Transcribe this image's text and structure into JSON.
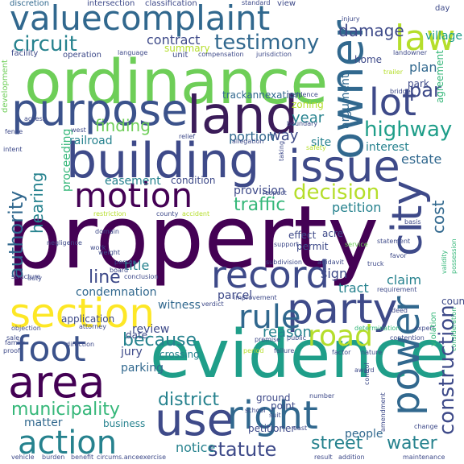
{
  "palette": {
    "dark_purple": "#440154",
    "indigo": "#3e4a89",
    "blue": "#31688e",
    "teal": "#26828e",
    "green": "#35b779",
    "lime": "#6ece58",
    "yellow_green": "#b5de2b",
    "yellow": "#fde725",
    "background": "#ffffff"
  },
  "words": [
    {
      "text": "property",
      "color": "#440154"
    },
    {
      "text": "evidence",
      "color": "#1f9e89"
    },
    {
      "text": "ordinance",
      "color": "#6ece58"
    },
    {
      "text": "building",
      "color": "#3e4a89"
    },
    {
      "text": "land",
      "color": "#3b1c59"
    },
    {
      "text": "purpose",
      "color": "#3b528b"
    },
    {
      "text": "valuecomplaint",
      "color": "#31688e"
    },
    {
      "text": "owner",
      "color": "#31688e"
    },
    {
      "text": "issue",
      "color": "#3e4a89"
    },
    {
      "text": "party",
      "color": "#3e4a89"
    },
    {
      "text": "section",
      "color": "#fde725"
    },
    {
      "text": "area",
      "color": "#440154"
    },
    {
      "text": "motion",
      "color": "#440154"
    },
    {
      "text": "use",
      "color": "#3e4a89"
    },
    {
      "text": "right",
      "color": "#31688e"
    },
    {
      "text": "foot",
      "color": "#3b528b"
    },
    {
      "text": "record",
      "color": "#3e4a89"
    },
    {
      "text": "city",
      "color": "#3e4a89"
    },
    {
      "text": "power",
      "color": "#31688e"
    },
    {
      "text": "lot",
      "color": "#3e4a89"
    },
    {
      "text": "rule",
      "color": "#31688e"
    },
    {
      "text": "law",
      "color": "#b5de2b"
    },
    {
      "text": "road",
      "color": "#b5de2b"
    },
    {
      "text": "action",
      "color": "#26828e"
    },
    {
      "text": "construction",
      "color": "#3e4a89"
    },
    {
      "text": "highway",
      "color": "#1f9e89"
    },
    {
      "text": "testimony",
      "color": "#31688e"
    },
    {
      "text": "circuit",
      "color": "#26828e"
    },
    {
      "text": "authority",
      "color": "#31688e"
    },
    {
      "text": "decision",
      "color": "#b5de2b"
    },
    {
      "text": "because",
      "color": "#26828e"
    },
    {
      "text": "statute",
      "color": "#3e4a89"
    },
    {
      "text": "street",
      "color": "#26828e"
    },
    {
      "text": "district",
      "color": "#26828e"
    },
    {
      "text": "municipality",
      "color": "#35b779"
    },
    {
      "text": "traffic",
      "color": "#35b779"
    },
    {
      "text": "finding",
      "color": "#6ece58"
    },
    {
      "text": "line",
      "color": "#3e4a89"
    },
    {
      "text": "damage",
      "color": "#3e4a89"
    },
    {
      "text": "hearing",
      "color": "#26828e"
    },
    {
      "text": "par",
      "color": "#3e4a89"
    },
    {
      "text": "cost",
      "color": "#31688e"
    },
    {
      "text": "water",
      "color": "#26828e"
    },
    {
      "text": "village",
      "color": "#1f9e89"
    },
    {
      "text": "contract",
      "color": "#3e4a89"
    },
    {
      "text": "condemnation",
      "color": "#31688e"
    },
    {
      "text": "witness",
      "color": "#31688e"
    },
    {
      "text": "petition",
      "color": "#26828e"
    },
    {
      "text": "reason",
      "color": "#26828e"
    },
    {
      "text": "claim",
      "color": "#26828e"
    },
    {
      "text": "tract",
      "color": "#26828e"
    },
    {
      "text": "interest",
      "color": "#26828e"
    },
    {
      "text": "estate",
      "color": "#31688e"
    },
    {
      "text": "argument",
      "color": "#31688e"
    },
    {
      "text": "way",
      "color": "#3e4a89"
    },
    {
      "text": "year",
      "color": "#26828e"
    },
    {
      "text": "site",
      "color": "#26828e"
    },
    {
      "text": "plan",
      "color": "#31688e"
    },
    {
      "text": "sign",
      "color": "#3e4a89"
    },
    {
      "text": "notice",
      "color": "#26828e"
    },
    {
      "text": "title",
      "color": "#26828e"
    },
    {
      "text": "portion",
      "color": "#31688e"
    },
    {
      "text": "matter",
      "color": "#31688e"
    },
    {
      "text": "proceeding",
      "color": "#35b779"
    },
    {
      "text": "review",
      "color": "#3e4a89"
    },
    {
      "text": "jury",
      "color": "#3e4a89"
    },
    {
      "text": "parking",
      "color": "#31688e"
    },
    {
      "text": "parcel",
      "color": "#3e4a89"
    },
    {
      "text": "people",
      "color": "#31688e"
    },
    {
      "text": "easement",
      "color": "#26828e"
    },
    {
      "text": "railroad",
      "color": "#26828e"
    },
    {
      "text": "application",
      "color": "#3e4a89"
    },
    {
      "text": "ground",
      "color": "#3e4a89"
    },
    {
      "text": "point",
      "color": "#3e4a89"
    },
    {
      "text": "provision",
      "color": "#3e4a89"
    },
    {
      "text": "condition",
      "color": "#3e4a89"
    },
    {
      "text": "date",
      "color": "#3e4a89"
    },
    {
      "text": "summary",
      "color": "#b5de2b"
    },
    {
      "text": "trackannexation",
      "color": "#31688e"
    },
    {
      "text": "zoning",
      "color": "#b5de2b"
    },
    {
      "text": "count",
      "color": "#3e4a89"
    },
    {
      "text": "business",
      "color": "#26828e"
    },
    {
      "text": "crossing",
      "color": "#26828e"
    },
    {
      "text": "petitioner",
      "color": "#3e4a89"
    },
    {
      "text": "effect",
      "color": "#3e4a89"
    },
    {
      "text": "permit",
      "color": "#3e4a89"
    },
    {
      "text": "acre",
      "color": "#3e4a89"
    },
    {
      "text": "home",
      "color": "#3e4a89"
    },
    {
      "text": "park",
      "color": "#3e4a89"
    },
    {
      "text": "agreement",
      "color": "#35b779"
    },
    {
      "text": "day",
      "color": "#3e4a89"
    },
    {
      "text": "view",
      "color": "#3e4a89"
    },
    {
      "text": "discretion",
      "color": "#31688e"
    },
    {
      "text": "intersection",
      "color": "#3e4a89"
    },
    {
      "text": "classification",
      "color": "#3e4a89"
    },
    {
      "text": "standard",
      "color": "#3e4a89"
    },
    {
      "text": "development",
      "color": "#6ece58"
    },
    {
      "text": "facility",
      "color": "#3e4a89"
    },
    {
      "text": "operation",
      "color": "#3e4a89"
    },
    {
      "text": "unit",
      "color": "#3e4a89"
    },
    {
      "text": "compensation",
      "color": "#3e4a89"
    },
    {
      "text": "jurisdiction",
      "color": "#3e4a89"
    },
    {
      "text": "language",
      "color": "#3e4a89"
    },
    {
      "text": "work",
      "color": "#3e4a89"
    },
    {
      "text": "weight",
      "color": "#3e4a89"
    },
    {
      "text": "west",
      "color": "#3e4a89"
    },
    {
      "text": "relief",
      "color": "#3e4a89"
    },
    {
      "text": "access",
      "color": "#3e4a89"
    },
    {
      "text": "fence",
      "color": "#3e4a89"
    },
    {
      "text": "intent",
      "color": "#3e4a89"
    },
    {
      "text": "injury",
      "color": "#3e4a89"
    },
    {
      "text": "landowner",
      "color": "#3e4a89"
    },
    {
      "text": "trailer",
      "color": "#b5de2b"
    },
    {
      "text": "bridge",
      "color": "#3e4a89"
    },
    {
      "text": "residence",
      "color": "#3e4a89"
    },
    {
      "text": "boundary",
      "color": "#3e4a89"
    },
    {
      "text": "safety",
      "color": "#b5de2b"
    },
    {
      "text": "allegation",
      "color": "#3e4a89"
    },
    {
      "text": "taking",
      "color": "#3e4a89"
    },
    {
      "text": "respect",
      "color": "#3e4a89"
    },
    {
      "text": "domain",
      "color": "#3e4a89"
    },
    {
      "text": "negligence",
      "color": "#3e4a89"
    },
    {
      "text": "person",
      "color": "#3e4a89"
    },
    {
      "text": "county",
      "color": "#3e4a89"
    },
    {
      "text": "accident",
      "color": "#b5de2b"
    },
    {
      "text": "restriction",
      "color": "#b5de2b"
    },
    {
      "text": "support",
      "color": "#3e4a89"
    },
    {
      "text": "service",
      "color": "#6ece58"
    },
    {
      "text": "statement",
      "color": "#3e4a89"
    },
    {
      "text": "favor",
      "color": "#3e4a89"
    },
    {
      "text": "truck",
      "color": "#3e4a89"
    },
    {
      "text": "basis",
      "color": "#3e4a89"
    },
    {
      "text": "possession",
      "color": "#35b779"
    },
    {
      "text": "validity",
      "color": "#35b779"
    },
    {
      "text": "subdivision",
      "color": "#3e4a89"
    },
    {
      "text": "affidavit",
      "color": "#3e4a89"
    },
    {
      "text": "structure",
      "color": "#3e4a89"
    },
    {
      "text": "duty",
      "color": "#3e4a89"
    },
    {
      "text": "board",
      "color": "#3e4a89"
    },
    {
      "text": "conclusion",
      "color": "#3e4a89"
    },
    {
      "text": "improvement",
      "color": "#3e4a89"
    },
    {
      "text": "requirement",
      "color": "#3e4a89"
    },
    {
      "text": "verdict",
      "color": "#3e4a89"
    },
    {
      "text": "objection",
      "color": "#3e4a89"
    },
    {
      "text": "attorney",
      "color": "#3e4a89"
    },
    {
      "text": "premise",
      "color": "#3e4a89"
    },
    {
      "text": "determination",
      "color": "#35b779"
    },
    {
      "text": "deed",
      "color": "#3e4a89"
    },
    {
      "text": "expert",
      "color": "#3e4a89"
    },
    {
      "text": "violation",
      "color": "#35b779"
    },
    {
      "text": "consideration",
      "color": "#35b779"
    },
    {
      "text": "contention",
      "color": "#3e4a89"
    },
    {
      "text": "failure",
      "color": "#3e4a89"
    },
    {
      "text": "factor",
      "color": "#3e4a89"
    },
    {
      "text": "nature",
      "color": "#3e4a89"
    },
    {
      "text": "period",
      "color": "#b5de2b"
    },
    {
      "text": "public",
      "color": "#3e4a89"
    },
    {
      "text": "proof",
      "color": "#3e4a89"
    },
    {
      "text": "sale",
      "color": "#3e4a89"
    },
    {
      "text": "family",
      "color": "#3e4a89"
    },
    {
      "text": "direction",
      "color": "#3e4a89"
    },
    {
      "text": "award",
      "color": "#3e4a89"
    },
    {
      "text": "number",
      "color": "#3e4a89"
    },
    {
      "text": "control",
      "color": "#3e4a89"
    },
    {
      "text": "school",
      "color": "#3e4a89"
    },
    {
      "text": "suit",
      "color": "#3e4a89"
    },
    {
      "text": "amendment",
      "color": "#3e4a89"
    },
    {
      "text": "change",
      "color": "#3e4a89"
    },
    {
      "text": "vehicle",
      "color": "#3e4a89"
    },
    {
      "text": "burden",
      "color": "#3e4a89"
    },
    {
      "text": "benefit",
      "color": "#3e4a89"
    },
    {
      "text": "circums.anceexercise",
      "color": "#3e4a89"
    },
    {
      "text": "result",
      "color": "#3e4a89"
    },
    {
      "text": "addition",
      "color": "#3e4a89"
    },
    {
      "text": "maintenance",
      "color": "#3e4a89"
    },
    {
      "text": "east",
      "color": "#3e4a89"
    }
  ]
}
